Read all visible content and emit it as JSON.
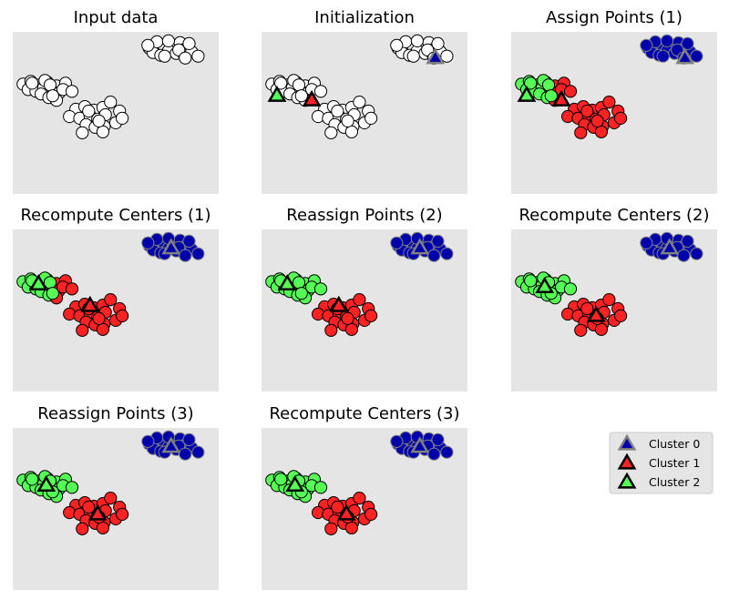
{
  "chart_data": {
    "type": "scatter",
    "description_none": "",
    "xlim": [
      -13,
      3
    ],
    "ylim": [
      -11,
      7
    ],
    "colors": {
      "background": "#e5e5e5",
      "unassigned": "#ffffff",
      "cluster_0": "#0000aa",
      "cluster_1": "#ff2222",
      "cluster_2": "#55ff55",
      "center_edge_0": "#808080",
      "center_edge_other": "#000000"
    },
    "points": [
      [
        -2.4,
        5.2
      ],
      [
        -1.8,
        5.6
      ],
      [
        -1.2,
        5.1
      ],
      [
        -0.6,
        5.4
      ],
      [
        0.0,
        5.8
      ],
      [
        0.5,
        5.2
      ],
      [
        -2.1,
        4.7
      ],
      [
        -1.5,
        4.4
      ],
      [
        -0.9,
        4.9
      ],
      [
        -0.3,
        4.6
      ],
      [
        0.3,
        4.5
      ],
      [
        0.9,
        4.8
      ],
      [
        1.4,
        4.3
      ],
      [
        -1.8,
        5.9
      ],
      [
        -0.9,
        6.0
      ],
      [
        -0.1,
        5.0
      ],
      [
        0.4,
        4.1
      ],
      [
        -1.2,
        4.3
      ],
      [
        0.7,
        5.7
      ],
      [
        -2.5,
        5.5
      ],
      [
        -12.2,
        1.2
      ],
      [
        -11.6,
        1.5
      ],
      [
        -11.0,
        1.1
      ],
      [
        -10.3,
        1.4
      ],
      [
        -9.6,
        1.0
      ],
      [
        -8.9,
        1.3
      ],
      [
        -11.8,
        0.6
      ],
      [
        -11.2,
        0.4
      ],
      [
        -10.6,
        0.8
      ],
      [
        -10.0,
        0.5
      ],
      [
        -9.4,
        0.2
      ],
      [
        -10.8,
        0.1
      ],
      [
        -10.2,
        -0.3
      ],
      [
        -9.6,
        -0.6
      ],
      [
        -9.1,
        0.6
      ],
      [
        -10.5,
        1.6
      ],
      [
        -8.4,
        0.4
      ],
      [
        -11.5,
        1.3
      ],
      [
        -10.1,
        1.1
      ],
      [
        -9.9,
        -0.1
      ],
      [
        -8.1,
        -1.6
      ],
      [
        -7.4,
        -1.3
      ],
      [
        -6.7,
        -1.7
      ],
      [
        -6.0,
        -1.4
      ],
      [
        -5.4,
        -0.8
      ],
      [
        -4.7,
        -1.8
      ],
      [
        -8.6,
        -2.4
      ],
      [
        -7.8,
        -2.6
      ],
      [
        -7.0,
        -2.3
      ],
      [
        -6.4,
        -2.7
      ],
      [
        -5.8,
        -2.2
      ],
      [
        -5.0,
        -3.1
      ],
      [
        -7.3,
        -3.3
      ],
      [
        -6.6,
        -3.6
      ],
      [
        -5.9,
        -3.5
      ],
      [
        -7.6,
        -4.2
      ],
      [
        -6.0,
        -4.1
      ],
      [
        -4.5,
        -2.6
      ],
      [
        -7.1,
        -1.8
      ],
      [
        -6.3,
        -2.9
      ]
    ],
    "stages": [
      {
        "title": "Input data",
        "assignments": [],
        "centers": []
      },
      {
        "title": "Initialization",
        "assignments": [],
        "centers": [
          [
            0.5,
            4.1
          ],
          [
            -9.1,
            -0.6
          ],
          [
            -11.8,
            -0.1
          ]
        ]
      },
      {
        "title": "Assign Points (1)",
        "assignments": [
          0,
          0,
          0,
          0,
          0,
          0,
          0,
          0,
          0,
          0,
          0,
          0,
          0,
          0,
          0,
          0,
          0,
          0,
          0,
          0,
          2,
          2,
          2,
          2,
          1,
          1,
          2,
          2,
          2,
          2,
          1,
          2,
          2,
          1,
          1,
          2,
          1,
          2,
          2,
          2,
          1,
          1,
          1,
          1,
          1,
          1,
          1,
          1,
          1,
          1,
          1,
          1,
          1,
          1,
          1,
          1,
          1,
          1,
          1,
          1
        ],
        "centers": [
          [
            0.5,
            4.1
          ],
          [
            -9.1,
            -0.6
          ],
          [
            -11.8,
            -0.1
          ]
        ]
      },
      {
        "title": "Recompute Centers (1)",
        "assignments": [
          0,
          0,
          0,
          0,
          0,
          0,
          0,
          0,
          0,
          0,
          0,
          0,
          0,
          0,
          0,
          0,
          0,
          0,
          0,
          0,
          2,
          2,
          2,
          2,
          1,
          1,
          2,
          2,
          2,
          2,
          1,
          2,
          2,
          1,
          1,
          2,
          1,
          2,
          2,
          2,
          1,
          1,
          1,
          1,
          1,
          1,
          1,
          1,
          1,
          1,
          1,
          1,
          1,
          1,
          1,
          1,
          1,
          1,
          1,
          1
        ],
        "centers": [
          [
            -0.7,
            4.9
          ],
          [
            -7.0,
            -1.5
          ],
          [
            -11.0,
            0.9
          ]
        ]
      },
      {
        "title": "Reassign Points (2)",
        "assignments": [
          0,
          0,
          0,
          0,
          0,
          0,
          0,
          0,
          0,
          0,
          0,
          0,
          0,
          0,
          0,
          0,
          0,
          0,
          0,
          0,
          2,
          2,
          2,
          2,
          2,
          2,
          2,
          2,
          2,
          2,
          2,
          2,
          2,
          2,
          2,
          2,
          2,
          2,
          2,
          2,
          1,
          1,
          1,
          1,
          1,
          1,
          1,
          1,
          1,
          1,
          1,
          1,
          1,
          1,
          1,
          1,
          1,
          1,
          1,
          1
        ],
        "centers": [
          [
            -0.7,
            4.9
          ],
          [
            -7.0,
            -1.5
          ],
          [
            -11.0,
            0.9
          ]
        ]
      },
      {
        "title": "Recompute Centers (2)",
        "assignments": [
          0,
          0,
          0,
          0,
          0,
          0,
          0,
          0,
          0,
          0,
          0,
          0,
          0,
          0,
          0,
          0,
          0,
          0,
          0,
          0,
          2,
          2,
          2,
          2,
          2,
          2,
          2,
          2,
          2,
          2,
          2,
          2,
          2,
          2,
          2,
          2,
          2,
          2,
          2,
          2,
          1,
          1,
          1,
          1,
          1,
          1,
          1,
          1,
          1,
          1,
          1,
          1,
          1,
          1,
          1,
          1,
          1,
          1,
          1,
          1
        ],
        "centers": [
          [
            -0.7,
            4.9
          ],
          [
            -6.4,
            -2.6
          ],
          [
            -10.4,
            0.6
          ]
        ]
      },
      {
        "title": "Reassign Points (3)",
        "assignments": [
          0,
          0,
          0,
          0,
          0,
          0,
          0,
          0,
          0,
          0,
          0,
          0,
          0,
          0,
          0,
          0,
          0,
          0,
          0,
          0,
          2,
          2,
          2,
          2,
          2,
          2,
          2,
          2,
          2,
          2,
          2,
          2,
          2,
          2,
          2,
          2,
          2,
          2,
          2,
          2,
          1,
          1,
          1,
          1,
          1,
          1,
          1,
          1,
          1,
          1,
          1,
          1,
          1,
          1,
          1,
          1,
          1,
          1,
          1,
          1
        ],
        "centers": [
          [
            -0.7,
            4.9
          ],
          [
            -6.4,
            -2.6
          ],
          [
            -10.4,
            0.6
          ]
        ]
      },
      {
        "title": "Recompute Centers (3)",
        "assignments": [
          0,
          0,
          0,
          0,
          0,
          0,
          0,
          0,
          0,
          0,
          0,
          0,
          0,
          0,
          0,
          0,
          0,
          0,
          0,
          0,
          2,
          2,
          2,
          2,
          2,
          2,
          2,
          2,
          2,
          2,
          2,
          2,
          2,
          2,
          2,
          2,
          2,
          2,
          2,
          2,
          1,
          1,
          1,
          1,
          1,
          1,
          1,
          1,
          1,
          1,
          1,
          1,
          1,
          1,
          1,
          1,
          1,
          1,
          1,
          1
        ],
        "centers": [
          [
            -0.7,
            4.9
          ],
          [
            -6.4,
            -2.6
          ],
          [
            -10.4,
            0.6
          ]
        ]
      }
    ],
    "legend": {
      "placement": "bottom-right",
      "entries": [
        "Cluster 0",
        "Cluster 1",
        "Cluster 2"
      ]
    },
    "grid": false
  }
}
